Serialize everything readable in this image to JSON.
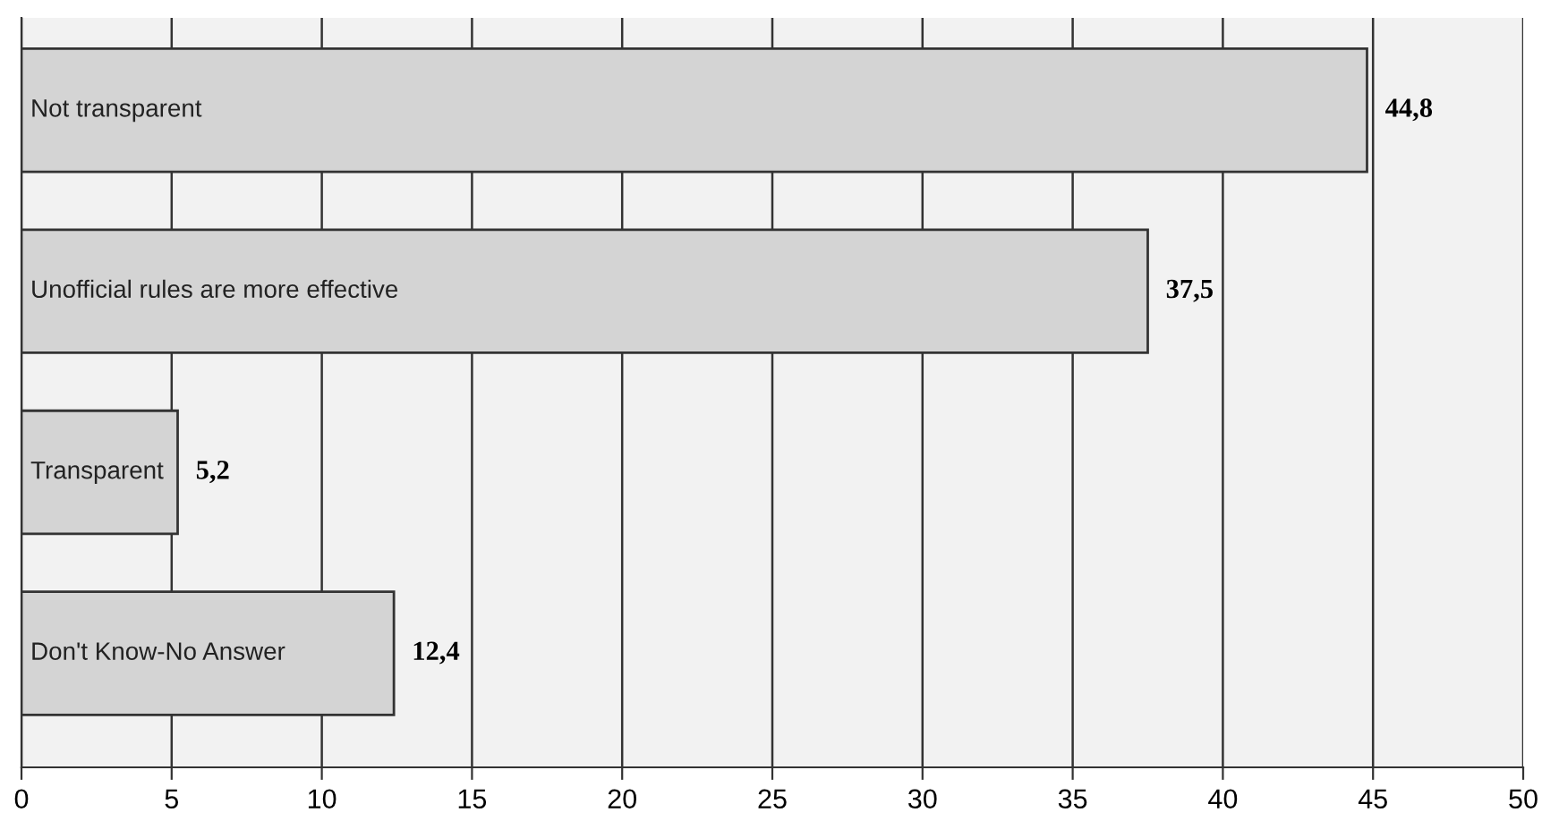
{
  "chart_data": {
    "type": "bar",
    "orientation": "horizontal",
    "categories": [
      "Not transparent",
      "Unofficial rules are more effective",
      "Transparent",
      "Don't Know-No Answer"
    ],
    "values": [
      44.8,
      37.5,
      5.2,
      12.4
    ],
    "value_labels": [
      "44,8",
      "37,5",
      "5,2",
      "12,4"
    ],
    "color": "#d4d4d4",
    "xlim": [
      0,
      50
    ],
    "xticks": [
      0,
      5,
      10,
      15,
      20,
      25,
      30,
      35,
      40,
      45,
      50
    ],
    "grid": "x"
  }
}
